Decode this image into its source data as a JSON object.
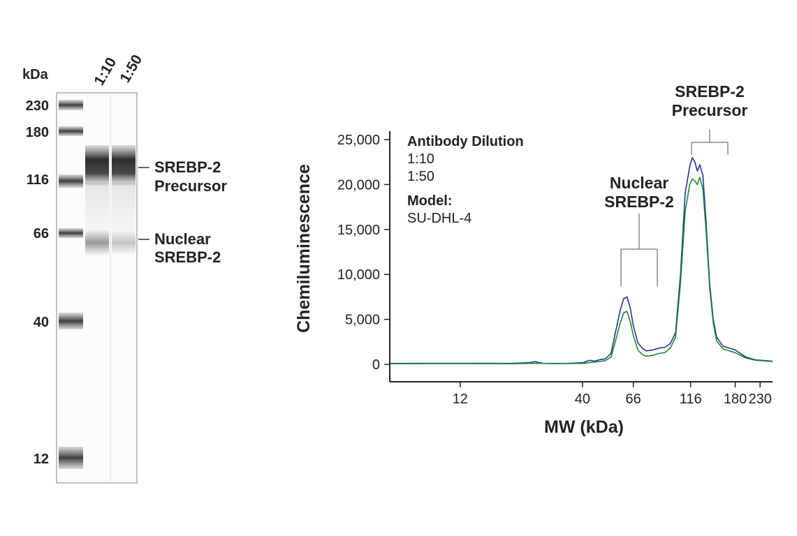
{
  "blot": {
    "unit_label": "kDa",
    "lane_labels": [
      "1:10",
      "1:50"
    ],
    "ladder": [
      {
        "label": "230",
        "kda": 230
      },
      {
        "label": "180",
        "kda": 180
      },
      {
        "label": "116",
        "kda": 116
      },
      {
        "label": "66",
        "kda": 66
      },
      {
        "label": "40",
        "kda": 40
      },
      {
        "label": "12",
        "kda": 12
      }
    ],
    "band_labels": [
      {
        "line1": "SREBP-2",
        "line2": "Precursor"
      },
      {
        "line1": "Nuclear",
        "line2": "SREBP-2"
      }
    ]
  },
  "chart_data": {
    "type": "line",
    "ylabel": "Chemiluminescence",
    "xlabel": "MW (kDa)",
    "x_scale": "log",
    "xlim": [
      6,
      260
    ],
    "ylim": [
      0,
      25000
    ],
    "y_ticks": [
      0,
      5000,
      10000,
      15000,
      20000,
      25000
    ],
    "y_tick_labels": [
      "0",
      "5,000",
      "10,000",
      "15,000",
      "20,000",
      "25,000"
    ],
    "x_ticks": [
      12,
      40,
      66,
      116,
      180,
      230
    ],
    "x_tick_labels": [
      "12",
      "40",
      "66",
      "116",
      "180",
      "230"
    ],
    "legend": {
      "title": "Antibody Dilution",
      "model_title": "Model:",
      "model_value": "SU-DHL-4"
    },
    "annotations": [
      {
        "line1": "Nuclear",
        "line2": "SREBP-2"
      },
      {
        "line1": "SREBP-2",
        "line2": "Precursor"
      }
    ],
    "series": [
      {
        "name": "1:10",
        "color": "#27339a",
        "points": [
          [
            6,
            100
          ],
          [
            10,
            120
          ],
          [
            15,
            110
          ],
          [
            20,
            100
          ],
          [
            24,
            200
          ],
          [
            25,
            300
          ],
          [
            27,
            120
          ],
          [
            30,
            100
          ],
          [
            35,
            120
          ],
          [
            40,
            180
          ],
          [
            43,
            450
          ],
          [
            45,
            350
          ],
          [
            48,
            550
          ],
          [
            50,
            600
          ],
          [
            53,
            1200
          ],
          [
            55,
            3200
          ],
          [
            58,
            6000
          ],
          [
            60,
            7300
          ],
          [
            62,
            7500
          ],
          [
            64,
            6300
          ],
          [
            66,
            4300
          ],
          [
            69,
            2400
          ],
          [
            72,
            1800
          ],
          [
            75,
            1500
          ],
          [
            80,
            1600
          ],
          [
            85,
            1800
          ],
          [
            90,
            1900
          ],
          [
            95,
            2300
          ],
          [
            100,
            3500
          ],
          [
            105,
            10000
          ],
          [
            110,
            19000
          ],
          [
            115,
            22000
          ],
          [
            118,
            23000
          ],
          [
            121,
            22500
          ],
          [
            124,
            21500
          ],
          [
            127,
            22200
          ],
          [
            131,
            21000
          ],
          [
            135,
            16000
          ],
          [
            140,
            9000
          ],
          [
            145,
            5000
          ],
          [
            150,
            3000
          ],
          [
            160,
            2000
          ],
          [
            180,
            1600
          ],
          [
            200,
            800
          ],
          [
            220,
            500
          ],
          [
            260,
            350
          ]
        ]
      },
      {
        "name": "1:50",
        "color": "#178a2c",
        "points": [
          [
            6,
            60
          ],
          [
            10,
            80
          ],
          [
            15,
            70
          ],
          [
            20,
            60
          ],
          [
            25,
            120
          ],
          [
            30,
            70
          ],
          [
            40,
            100
          ],
          [
            45,
            250
          ],
          [
            50,
            400
          ],
          [
            53,
            800
          ],
          [
            55,
            2300
          ],
          [
            58,
            4600
          ],
          [
            60,
            5700
          ],
          [
            62,
            5900
          ],
          [
            64,
            4800
          ],
          [
            66,
            3200
          ],
          [
            69,
            1600
          ],
          [
            72,
            1100
          ],
          [
            75,
            900
          ],
          [
            80,
            1000
          ],
          [
            85,
            1200
          ],
          [
            90,
            1300
          ],
          [
            95,
            1800
          ],
          [
            100,
            3000
          ],
          [
            105,
            9000
          ],
          [
            110,
            17000
          ],
          [
            115,
            20000
          ],
          [
            118,
            20600
          ],
          [
            121,
            20400
          ],
          [
            124,
            20000
          ],
          [
            127,
            20800
          ],
          [
            131,
            19500
          ],
          [
            135,
            15000
          ],
          [
            140,
            8500
          ],
          [
            145,
            4600
          ],
          [
            150,
            2600
          ],
          [
            160,
            1700
          ],
          [
            180,
            1300
          ],
          [
            200,
            700
          ],
          [
            220,
            450
          ],
          [
            260,
            300
          ]
        ]
      }
    ]
  }
}
